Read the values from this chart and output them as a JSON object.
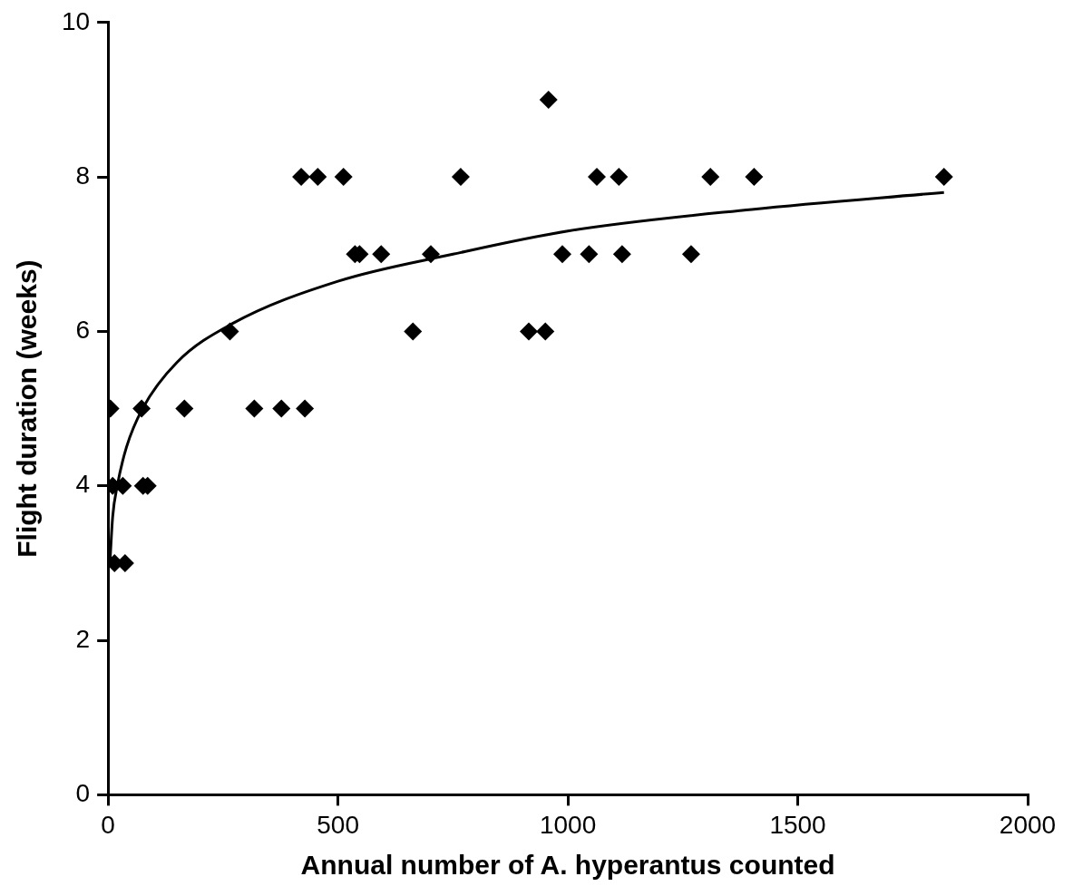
{
  "chart_data": {
    "type": "scatter",
    "xlabel": "Annual number of A. hyperantus counted",
    "ylabel": "Flight duration (weeks)",
    "xlim": [
      0,
      2000
    ],
    "xticks": [
      0,
      500,
      1000,
      1500,
      2000
    ],
    "ylim": [
      0,
      10
    ],
    "yticks": [
      0,
      2,
      4,
      6,
      8,
      10
    ],
    "grid": false,
    "legend": false,
    "marker": "diamond",
    "series": [
      {
        "color": "#000000",
        "x": [
          14,
          37,
          10,
          32,
          76,
          86,
          5,
          73,
          166,
          318,
          377,
          428,
          265,
          663,
          915,
          951,
          537,
          547,
          594,
          702,
          988,
          1046,
          1118,
          1268,
          420,
          456,
          512,
          767,
          1063,
          1111,
          1310,
          1405,
          1818,
          958
        ],
        "values": [
          3,
          3,
          4,
          4,
          4,
          4,
          5,
          5,
          5,
          5,
          5,
          5,
          6,
          6,
          6,
          6,
          7,
          7,
          7,
          7,
          7,
          7,
          7,
          7,
          8,
          8,
          8,
          8,
          8,
          8,
          8,
          8,
          8,
          9
        ]
      },
      {
        "type": "line",
        "color": "#000000",
        "marker": "none",
        "line_style": "solid",
        "x": [
          4,
          10,
          20,
          40,
          75,
          150,
          270,
          500,
          750,
          1000,
          1400,
          1818
        ],
        "values": [
          3.0,
          3.6,
          4.0,
          4.5,
          5.0,
          5.6,
          6.1,
          6.65,
          7.0,
          7.3,
          7.58,
          7.8
        ]
      }
    ]
  }
}
